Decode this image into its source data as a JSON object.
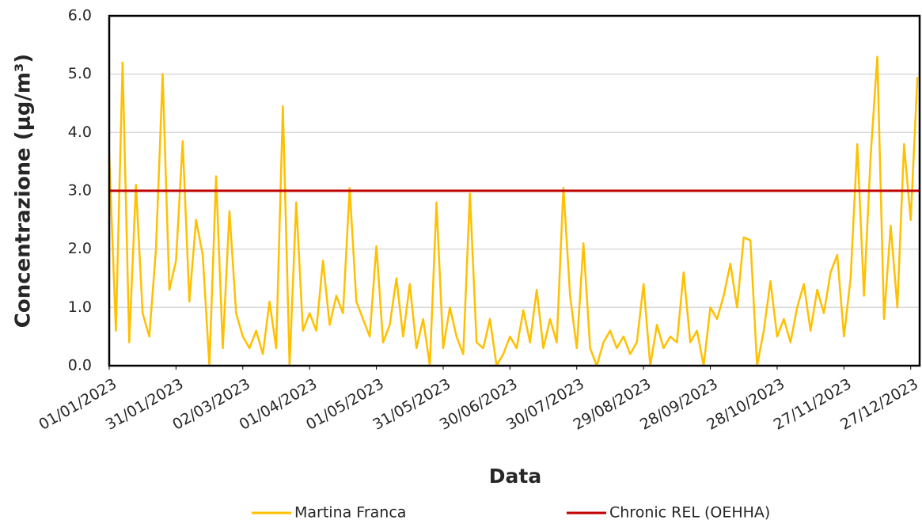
{
  "chart_data": {
    "type": "line",
    "x_label": "Data",
    "y_label": "Concentrazione (μg/m³)",
    "x": [
      "01/01/2023",
      "04/01/2023",
      "07/01/2023",
      "10/01/2023",
      "13/01/2023",
      "16/01/2023",
      "19/01/2023",
      "22/01/2023",
      "25/01/2023",
      "28/01/2023",
      "31/01/2023",
      "03/02/2023",
      "06/02/2023",
      "09/02/2023",
      "12/02/2023",
      "15/02/2023",
      "18/02/2023",
      "21/02/2023",
      "24/02/2023",
      "27/02/2023",
      "02/03/2023",
      "05/03/2023",
      "08/03/2023",
      "11/03/2023",
      "14/03/2023",
      "17/03/2023",
      "20/03/2023",
      "23/03/2023",
      "26/03/2023",
      "29/03/2023",
      "01/04/2023",
      "04/04/2023",
      "07/04/2023",
      "10/04/2023",
      "13/04/2023",
      "16/04/2023",
      "19/04/2023",
      "22/04/2023",
      "25/04/2023",
      "28/04/2023",
      "01/05/2023",
      "04/05/2023",
      "07/05/2023",
      "10/05/2023",
      "13/05/2023",
      "16/05/2023",
      "19/05/2023",
      "22/05/2023",
      "25/05/2023",
      "28/05/2023",
      "31/05/2023",
      "03/06/2023",
      "06/06/2023",
      "09/06/2023",
      "12/06/2023",
      "15/06/2023",
      "18/06/2023",
      "21/06/2023",
      "24/06/2023",
      "27/06/2023",
      "30/06/2023",
      "03/07/2023",
      "06/07/2023",
      "09/07/2023",
      "12/07/2023",
      "15/07/2023",
      "18/07/2023",
      "21/07/2023",
      "24/07/2023",
      "27/07/2023",
      "30/07/2023",
      "02/08/2023",
      "05/08/2023",
      "08/08/2023",
      "11/08/2023",
      "14/08/2023",
      "17/08/2023",
      "20/08/2023",
      "23/08/2023",
      "26/08/2023",
      "29/08/2023",
      "01/09/2023",
      "04/09/2023",
      "07/09/2023",
      "10/09/2023",
      "13/09/2023",
      "16/09/2023",
      "19/09/2023",
      "22/09/2023",
      "25/09/2023",
      "28/09/2023",
      "01/10/2023",
      "04/10/2023",
      "07/10/2023",
      "10/10/2023",
      "13/10/2023",
      "16/10/2023",
      "19/10/2023",
      "22/10/2023",
      "25/10/2023",
      "28/10/2023",
      "31/10/2023",
      "03/11/2023",
      "06/11/2023",
      "09/11/2023",
      "12/11/2023",
      "15/11/2023",
      "18/11/2023",
      "21/11/2023",
      "24/11/2023",
      "27/11/2023",
      "30/11/2023",
      "03/12/2023",
      "06/12/2023",
      "09/12/2023",
      "12/12/2023",
      "15/12/2023",
      "18/12/2023",
      "21/12/2023",
      "24/12/2023",
      "27/12/2023",
      "30/12/2023"
    ],
    "series": [
      {
        "name": "Martina Franca",
        "color": "#ffc000",
        "values": [
          3.6,
          0.6,
          5.2,
          0.4,
          3.1,
          0.9,
          0.5,
          2.0,
          5.0,
          1.3,
          1.8,
          3.85,
          1.1,
          2.5,
          1.9,
          0.0,
          3.25,
          0.3,
          2.65,
          0.9,
          0.5,
          0.3,
          0.6,
          0.2,
          1.1,
          0.3,
          4.45,
          0.0,
          2.8,
          0.6,
          0.9,
          0.6,
          1.8,
          0.7,
          1.2,
          0.9,
          3.05,
          1.1,
          0.8,
          0.5,
          2.05,
          0.4,
          0.7,
          1.5,
          0.5,
          1.4,
          0.3,
          0.8,
          0.0,
          2.8,
          0.3,
          1.0,
          0.5,
          0.2,
          2.95,
          0.4,
          0.3,
          0.8,
          0.0,
          0.2,
          0.5,
          0.3,
          0.95,
          0.4,
          1.3,
          0.3,
          0.8,
          0.4,
          3.05,
          1.2,
          0.3,
          2.1,
          0.3,
          0.0,
          0.4,
          0.6,
          0.3,
          0.5,
          0.2,
          0.4,
          1.4,
          0.0,
          0.7,
          0.3,
          0.5,
          0.4,
          1.6,
          0.4,
          0.6,
          0.0,
          1.0,
          0.8,
          1.2,
          1.75,
          1.0,
          2.2,
          2.15,
          0.0,
          0.6,
          1.45,
          0.5,
          0.8,
          0.4,
          1.0,
          1.4,
          0.6,
          1.3,
          0.9,
          1.6,
          1.9,
          0.5,
          1.5,
          3.8,
          1.2,
          3.6,
          5.3,
          0.8,
          2.4,
          1.0,
          3.8,
          2.5,
          4.95
        ]
      }
    ],
    "reference_lines": [
      {
        "name": "Chronic REL (OEHHA)",
        "color": "#c00000",
        "value": 3
      }
    ],
    "xlim": [
      "01/01/2023",
      "31/12/2023"
    ],
    "xticks": [
      "01/01/2023",
      "31/01/2023",
      "02/03/2023",
      "01/04/2023",
      "01/05/2023",
      "31/05/2023",
      "30/06/2023",
      "30/07/2023",
      "29/08/2023",
      "28/09/2023",
      "28/10/2023",
      "27/11/2023",
      "27/12/2023"
    ],
    "ylim": [
      0,
      6
    ],
    "yticks": [
      {
        "value": 0,
        "label": "0.0"
      },
      {
        "value": 1,
        "label": "1.0"
      },
      {
        "value": 2,
        "label": "2.0"
      },
      {
        "value": 3,
        "label": "3.0"
      },
      {
        "value": 4,
        "label": "4.0"
      },
      {
        "value": 5,
        "label": "5.0"
      },
      {
        "value": 6,
        "label": "6.0"
      }
    ],
    "grid": true,
    "legend": "bottom"
  }
}
